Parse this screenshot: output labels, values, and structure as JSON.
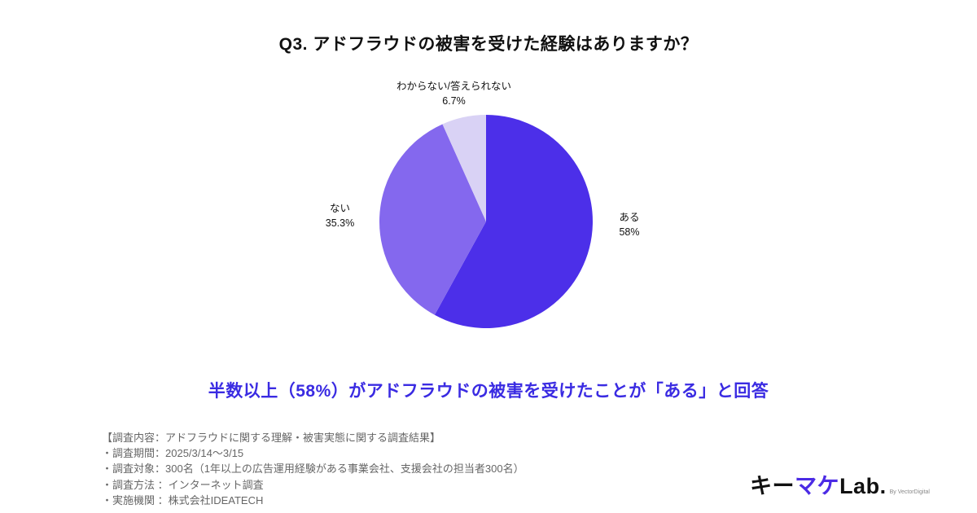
{
  "title": "Q3. アドフラウドの被害を受けた経験はありますか？",
  "chart_data": {
    "type": "pie",
    "title": "Q3. アドフラウドの被害を受けた経験はありますか？",
    "start_angle_deg": 0,
    "direction": "clockwise",
    "legend_position": "outside-labels",
    "slices": [
      {
        "label": "ある",
        "value": 58,
        "display": "58%",
        "color": "#4c2fe9"
      },
      {
        "label": "ない",
        "value": 35.3,
        "display": "35.3%",
        "color": "#8468ee"
      },
      {
        "label": "わからない/答えられない",
        "value": 6.7,
        "display": "6.7%",
        "color": "#d9d2f5"
      }
    ]
  },
  "highlight": "半数以上（58%）がアドフラウドの被害を受けたことが「ある」と回答",
  "survey": {
    "heading": "【調査内容：アドフラウドに関する理解・被害実態に関する調査結果】",
    "lines": [
      "・調査期間：2025/3/14〜3/15",
      "・調査対象：300名（1年以上の広告運用経験がある事業会社、支援会社の担当者300名）",
      "・調査方法 ：インターネット調査",
      "・実施機関 ：株式会社IDEATECH"
    ]
  },
  "logo": {
    "part1": "キー",
    "part2": "マケ",
    "part3": "Lab.",
    "byline": "By VectorDigital"
  },
  "colors": {
    "highlight_text": "#3a2be2",
    "footer_text": "#666666",
    "logo_accent": "#4b2be5"
  }
}
